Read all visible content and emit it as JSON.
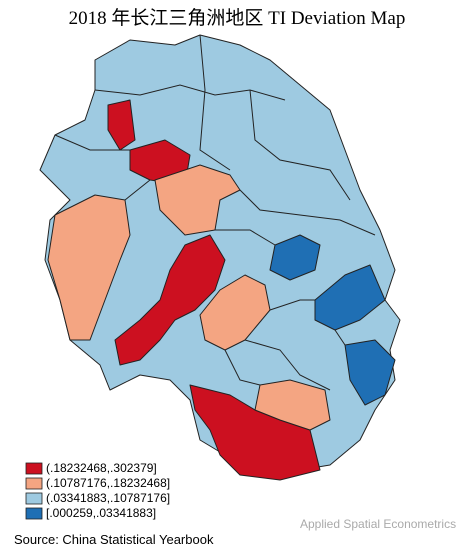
{
  "title": "2018 年长江三角洲地区 TI Deviation Map",
  "legend": [
    {
      "label": "(.18232468,.302379]",
      "color": "#cc1020"
    },
    {
      "label": "(.10787176,.18232468]",
      "color": "#f4a582"
    },
    {
      "label": "(.03341883,.10787176]",
      "color": "#9ecae1"
    },
    {
      "label": "[.000259,.03341883]",
      "color": "#1f6fb4"
    }
  ],
  "source": "Source: China Statistical Yearbook",
  "watermark": "Applied Spatial Econometrics"
}
